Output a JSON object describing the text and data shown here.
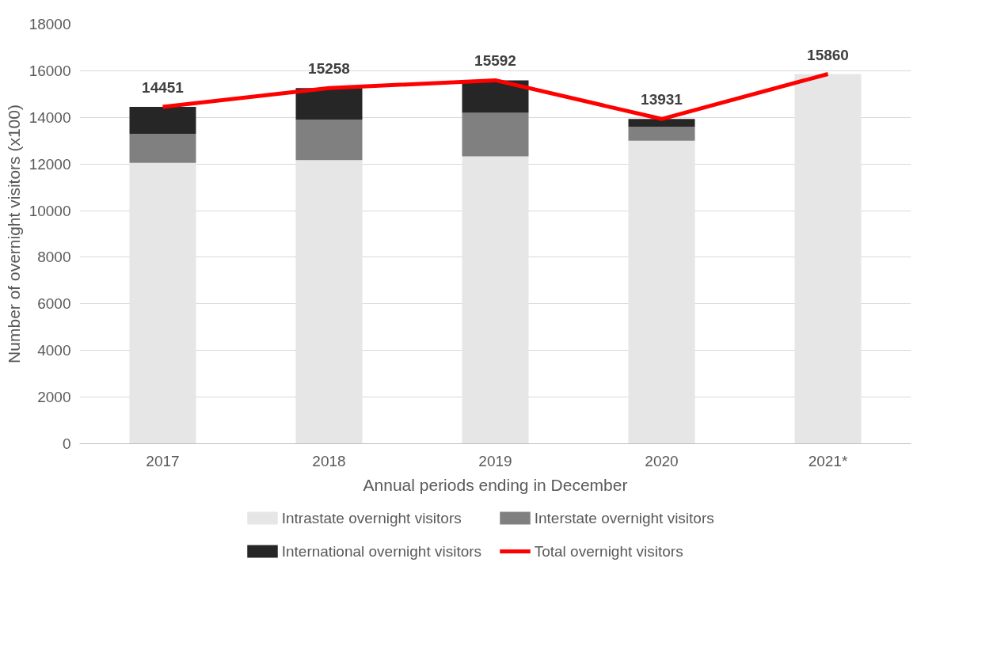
{
  "chart_data": {
    "type": "bar",
    "stacked": true,
    "xlabel": "Annual periods ending in December",
    "ylabel": "Number of overnight visitors (x100)",
    "categories": [
      "2017",
      "2018",
      "2019",
      "2020",
      "2021*"
    ],
    "ylim": [
      0,
      18000
    ],
    "yticks": [
      0,
      2000,
      4000,
      6000,
      8000,
      10000,
      12000,
      14000,
      16000,
      18000
    ],
    "grid": "y",
    "legend": "bottom",
    "series": [
      {
        "name": "Intrastate overnight visitors",
        "color": "#e6e6e6",
        "values": [
          12050,
          12170,
          12330,
          13000,
          15860
        ]
      },
      {
        "name": "Interstate overnight visitors",
        "color": "#808080",
        "values": [
          1250,
          1740,
          1870,
          590,
          null
        ]
      },
      {
        "name": "International overnight visitors",
        "color": "#262626",
        "values": [
          1150,
          1350,
          1390,
          340,
          null
        ]
      },
      {
        "name": "Total overnight visitors",
        "type": "line",
        "color": "#ff0000",
        "values": [
          14451,
          15258,
          15592,
          13931,
          15860
        ],
        "value_labels": [
          "14451",
          "15258",
          "15592",
          "13931",
          "15860"
        ]
      }
    ]
  }
}
